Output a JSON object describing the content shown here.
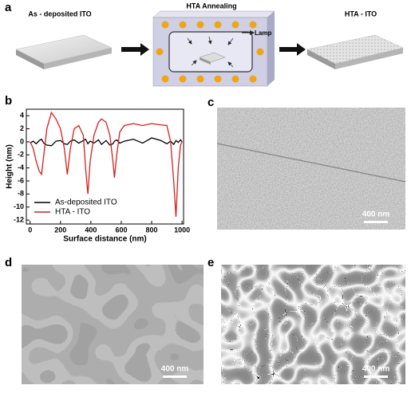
{
  "panel_labels": [
    "a",
    "b",
    "c",
    "d",
    "e"
  ],
  "schematic": {
    "steps": [
      "As - deposited ITO",
      "HTA Annealing",
      "HTA - ITO"
    ],
    "lamp": "Lamp"
  },
  "scale_bars": [
    "400 nm",
    "400 nm",
    "400 nm"
  ],
  "chart_data": {
    "type": "line",
    "x_label": "Surface distance (nm)",
    "y_label": "Height (nm)",
    "x": [
      0,
      20,
      40,
      60,
      75,
      90,
      110,
      140,
      170,
      200,
      225,
      245,
      265,
      290,
      320,
      350,
      365,
      380,
      395,
      420,
      450,
      470,
      500,
      525,
      545,
      555,
      570,
      590,
      620,
      680,
      740,
      800,
      860,
      900,
      925,
      945,
      960,
      975,
      990,
      1000
    ],
    "series": [
      {
        "name": "As-deposited ITO",
        "color": "#000000",
        "values": [
          -0.2,
          0.1,
          -0.3,
          0.2,
          0.4,
          -0.2,
          -0.5,
          -0.6,
          0.1,
          0.2,
          -0.3,
          -0.4,
          0.1,
          0.3,
          -0.2,
          0.2,
          0.4,
          -0.3,
          0.1,
          -0.2,
          0.3,
          -0.4,
          0.2,
          -0.5,
          -0.3,
          0.1,
          0.3,
          -0.2,
          0.1,
          0.4,
          -0.2,
          0.6,
          0.2,
          -0.3,
          0.1,
          -0.4,
          0.2,
          -0.1,
          0.3,
          0
        ]
      },
      {
        "name": "HTA - ITO",
        "color": "#d42020",
        "values": [
          0,
          -1,
          -3,
          -4.5,
          -5,
          -2,
          2,
          4.5,
          3.5,
          2,
          -1,
          -5,
          -1,
          2,
          2.5,
          1,
          -4,
          -8,
          -3,
          1,
          3,
          3.5,
          3,
          1,
          -3,
          -5.5,
          -2,
          1.5,
          2.5,
          2.8,
          2.5,
          2.8,
          2.6,
          2.5,
          0,
          -6,
          -11.5,
          -4,
          -0.5,
          0
        ]
      }
    ],
    "xlim": [
      -25,
      1010
    ],
    "xticks": [
      0,
      200,
      400,
      600,
      800,
      1000
    ],
    "ylim": [
      -12.6,
      5
    ],
    "yticks": [
      -12,
      -10,
      -8,
      -6,
      -4,
      -2,
      0,
      2,
      4
    ],
    "legend": "lower left"
  }
}
